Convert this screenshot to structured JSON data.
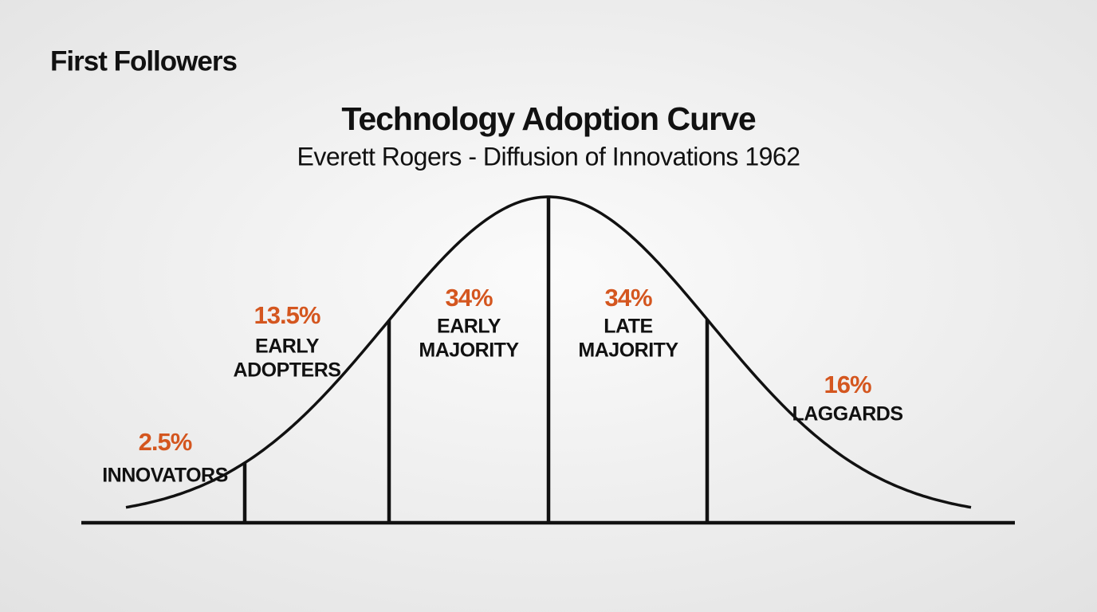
{
  "header": {
    "title": "First Followers"
  },
  "diagram": {
    "title": "Technology Adoption Curve",
    "subtitle": "Everett Rogers - Diffusion of Innovations 1962",
    "segments": [
      {
        "share": "2.5%",
        "name": [
          "INNOVATORS"
        ]
      },
      {
        "share": "13.5%",
        "name": [
          "EARLY",
          "ADOPTERS"
        ]
      },
      {
        "share": "34%",
        "name": [
          "EARLY",
          "MAJORITY"
        ]
      },
      {
        "share": "34%",
        "name": [
          "LATE",
          "MAJORITY"
        ]
      },
      {
        "share": "16%",
        "name": [
          "LAGGARDS"
        ]
      }
    ]
  }
}
